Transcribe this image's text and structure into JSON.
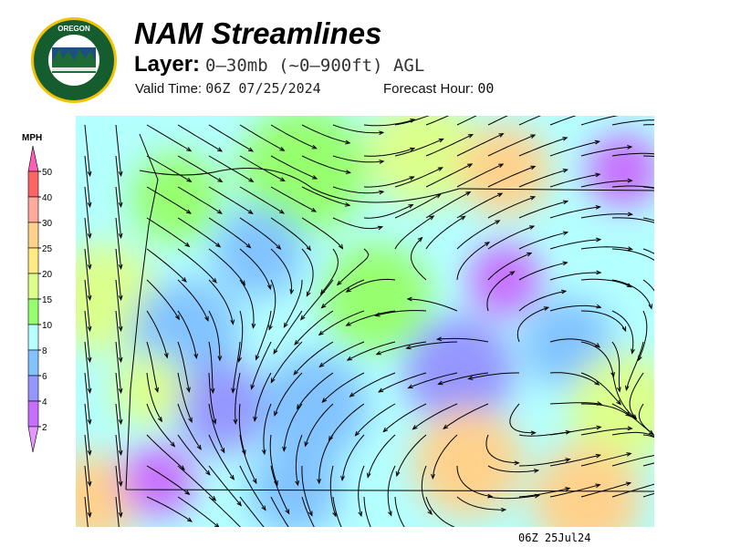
{
  "logo": {
    "text": "OREGON DEPARTMENT OF FORESTRY"
  },
  "header": {
    "title": "NAM Streamlines",
    "layer_label": "Layer:",
    "layer_value": "0–30mb (~0–900ft) AGL",
    "valid_label": "Valid Time:",
    "valid_value": "06Z 07/25/2024",
    "forecast_label": "Forecast Hour:",
    "forecast_value": "00"
  },
  "legend": {
    "unit": "MPH",
    "ticks": [
      "50",
      "40",
      "30",
      "25",
      "20",
      "15",
      "10",
      "8",
      "6",
      "4",
      "2"
    ],
    "colors": [
      "#ff5fb4",
      "#ff6464",
      "#ffaa9a",
      "#ffd28c",
      "#ffeb82",
      "#dcff8c",
      "#96ff6e",
      "#b4ffff",
      "#82c3ff",
      "#9696ff",
      "#c86eff",
      "#e696ff"
    ]
  },
  "map": {
    "timestamp": "06Z 25Jul24"
  }
}
